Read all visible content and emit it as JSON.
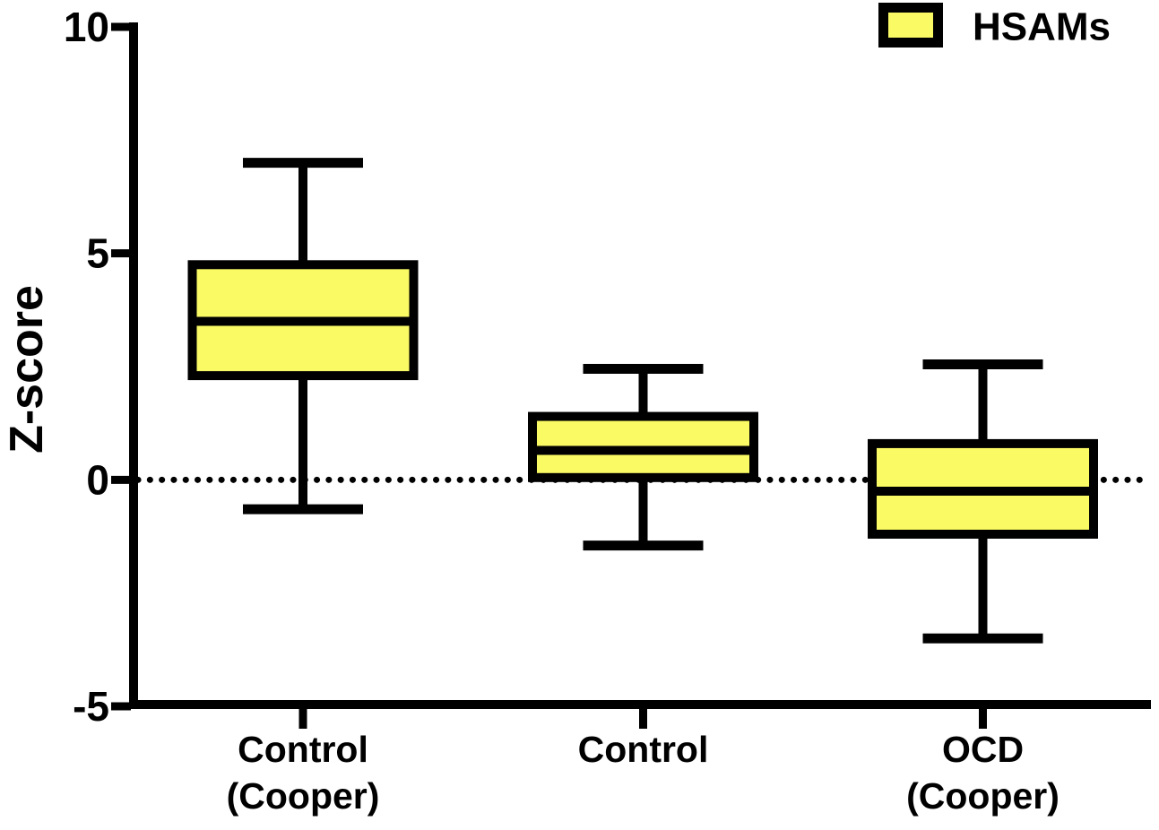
{
  "chart_data": {
    "type": "box",
    "title": "",
    "xlabel": "",
    "ylabel": "Z-score",
    "ylim": [
      -5,
      10
    ],
    "yticks": [
      10,
      5,
      0,
      -5
    ],
    "grid": false,
    "reference_line": {
      "y": 0,
      "style": "dotted",
      "color": "#000000"
    },
    "legend": {
      "position": "top-right",
      "label": "HSAMs"
    },
    "categories": [
      {
        "name": "Control (Cooper)",
        "lines": [
          "Control",
          "(Cooper)"
        ]
      },
      {
        "name": "Control",
        "lines": [
          "Control"
        ]
      },
      {
        "name": "OCD (Cooper)",
        "lines": [
          "OCD",
          "(Cooper)"
        ]
      }
    ],
    "series": [
      {
        "name": "HSAMs",
        "values": [
          {
            "category": "Control (Cooper)",
            "whisker_low": -0.65,
            "q1": 2.3,
            "median": 3.5,
            "q3": 4.75,
            "whisker_high": 7.0
          },
          {
            "category": "Control",
            "whisker_low": -1.45,
            "q1": 0.05,
            "median": 0.65,
            "q3": 1.4,
            "whisker_high": 2.45
          },
          {
            "category": "OCD (Cooper)",
            "whisker_low": -3.5,
            "q1": -1.2,
            "median": -0.25,
            "q3": 0.8,
            "whisker_high": 2.55
          }
        ]
      }
    ],
    "colors": {
      "box_fill": "#FAFA64",
      "line": "#000000",
      "background": "#FFFFFF"
    }
  }
}
